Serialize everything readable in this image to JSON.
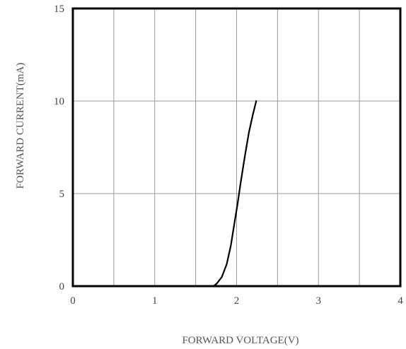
{
  "chart_data": {
    "type": "line",
    "title": "",
    "xlabel": "FORWARD VOLTAGE(V)",
    "ylabel": "FORWARD CURRENT(mA)",
    "xlim": [
      0,
      4
    ],
    "ylim": [
      0,
      15
    ],
    "xticks": [
      0,
      1,
      2,
      3,
      4
    ],
    "yticks": [
      0,
      5,
      10,
      15
    ],
    "x_grid_step": 0.5,
    "y_grid_step": 5,
    "grid": true,
    "legend": "none",
    "series": [
      {
        "line_color": "#000000",
        "x": [
          1.72,
          1.76,
          1.82,
          1.88,
          1.93,
          1.97,
          2.01,
          2.05,
          2.1,
          2.15,
          2.2,
          2.24
        ],
        "y": [
          0.0,
          0.15,
          0.5,
          1.2,
          2.2,
          3.3,
          4.4,
          5.6,
          7.0,
          8.3,
          9.3,
          10.0
        ]
      }
    ]
  }
}
